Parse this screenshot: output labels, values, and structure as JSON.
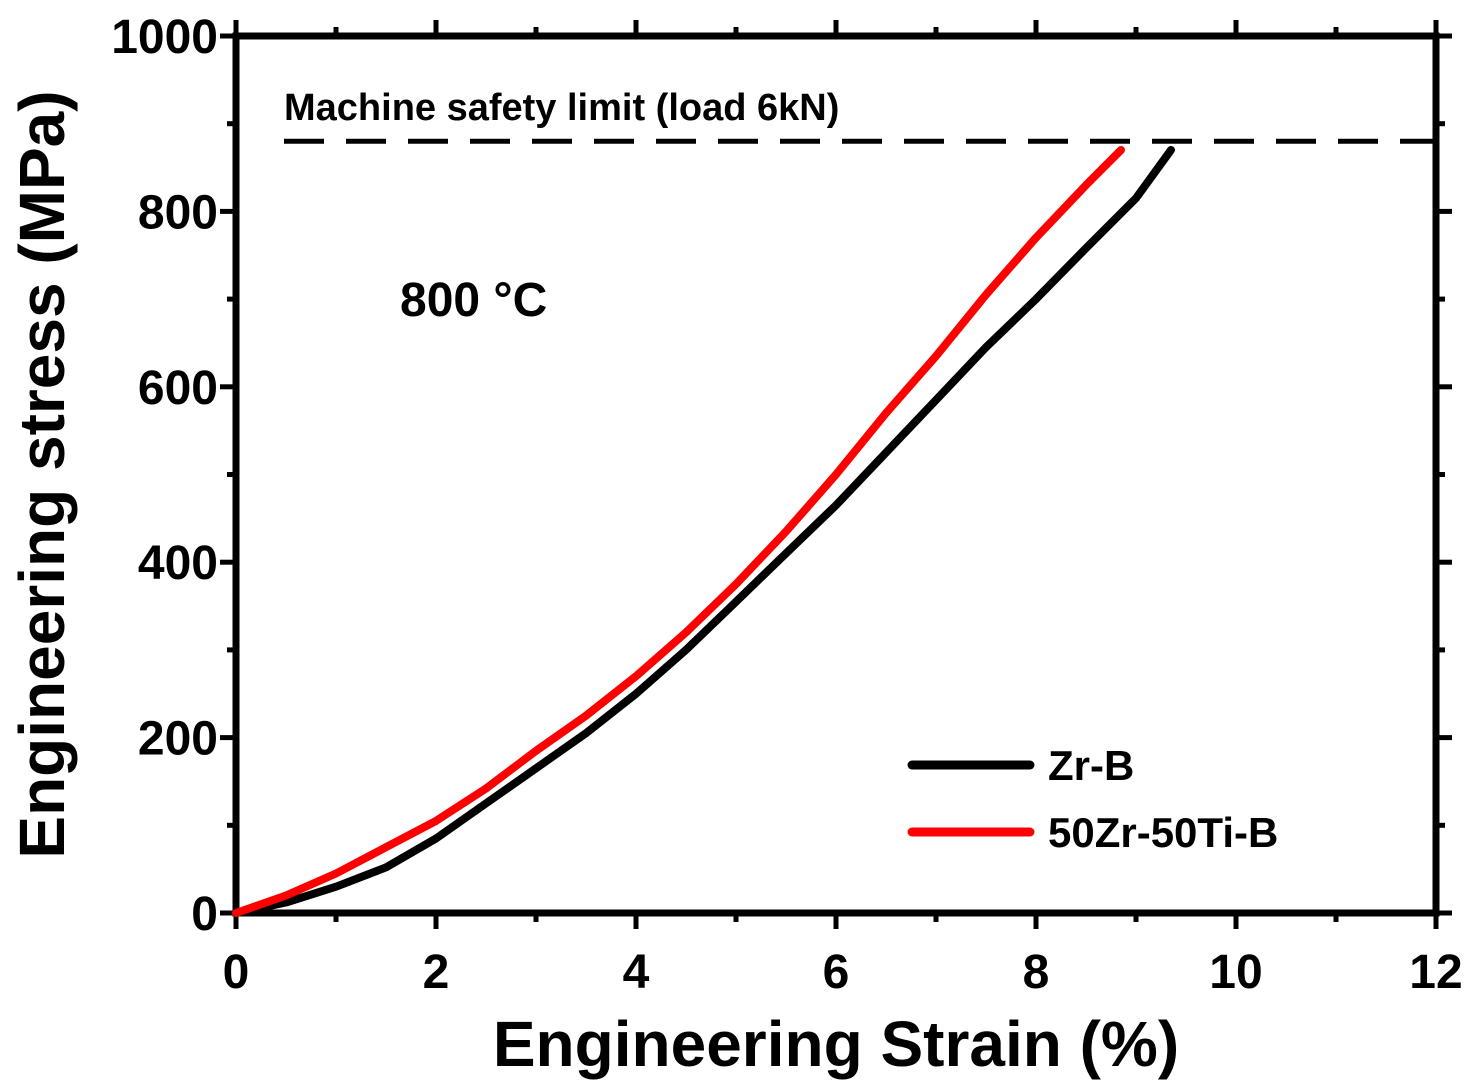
{
  "chart_data": {
    "type": "line",
    "xlabel": "Engineering Strain (%)",
    "ylabel": "Engineering stress (MPa)",
    "xlim": [
      0,
      12
    ],
    "ylim": [
      0,
      1000
    ],
    "x_ticks": [
      0,
      2,
      4,
      6,
      8,
      10,
      12
    ],
    "y_ticks": [
      0,
      200,
      400,
      600,
      800,
      1000
    ],
    "grid": false,
    "legend_position": "bottom-right",
    "annotations": {
      "safety_limit": {
        "text": "Machine safety limit (load 6kN)",
        "y": 880
      },
      "temperature": {
        "text": "800 °C"
      }
    },
    "series": [
      {
        "name": "Zr-B",
        "color": "#000000",
        "x": [
          0,
          0.5,
          1.0,
          1.5,
          2.0,
          2.5,
          3.0,
          3.5,
          4.0,
          4.5,
          5.0,
          5.5,
          6.0,
          6.5,
          7.0,
          7.5,
          8.0,
          8.5,
          9.0,
          9.35
        ],
        "y": [
          0,
          12,
          30,
          52,
          85,
          125,
          165,
          205,
          250,
          300,
          355,
          410,
          465,
          525,
          585,
          645,
          700,
          758,
          815,
          870
        ]
      },
      {
        "name": "50Zr-50Ti-B",
        "color": "#ff0000",
        "x": [
          0,
          0.5,
          1.0,
          1.5,
          2.0,
          2.5,
          3.0,
          3.5,
          4.0,
          4.5,
          5.0,
          5.5,
          6.0,
          6.5,
          7.0,
          7.5,
          8.0,
          8.5,
          8.85
        ],
        "y": [
          0,
          20,
          45,
          75,
          105,
          142,
          185,
          225,
          270,
          320,
          375,
          435,
          500,
          570,
          635,
          705,
          770,
          830,
          870
        ]
      }
    ]
  }
}
